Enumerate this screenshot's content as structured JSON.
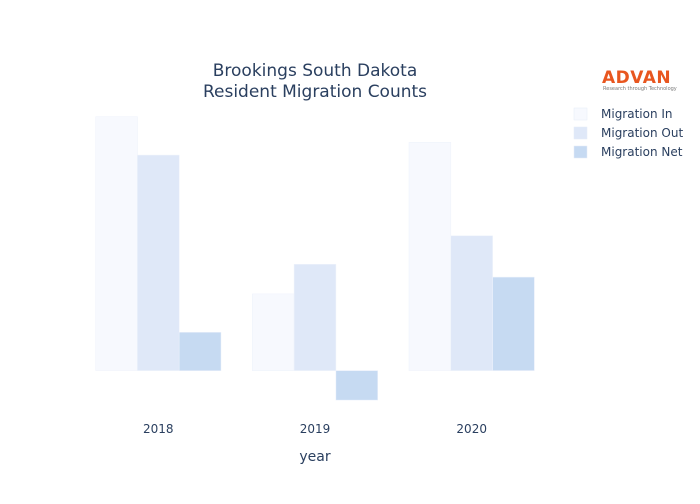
{
  "chart_data": {
    "type": "bar",
    "title_lines": [
      "Brookings South Dakota",
      "Resident Migration Counts"
    ],
    "xlabel": "year",
    "ylabel": "",
    "categories": [
      "2018",
      "2019",
      "2020"
    ],
    "series": [
      {
        "name": "Migration In",
        "values": [
          258,
          78,
          232
        ],
        "color": "#f7f9fe"
      },
      {
        "name": "Migration Out",
        "values": [
          219,
          108,
          137
        ],
        "color": "#dfe8f8"
      },
      {
        "name": "Migration Net",
        "values": [
          39,
          -30,
          95
        ],
        "color": "#c6daf2"
      }
    ],
    "ylim": [
      -40,
      275
    ],
    "grid": false,
    "legend_position": "top-right"
  },
  "logo": {
    "name": "ADVAN",
    "tagline": "Research through Technology"
  }
}
